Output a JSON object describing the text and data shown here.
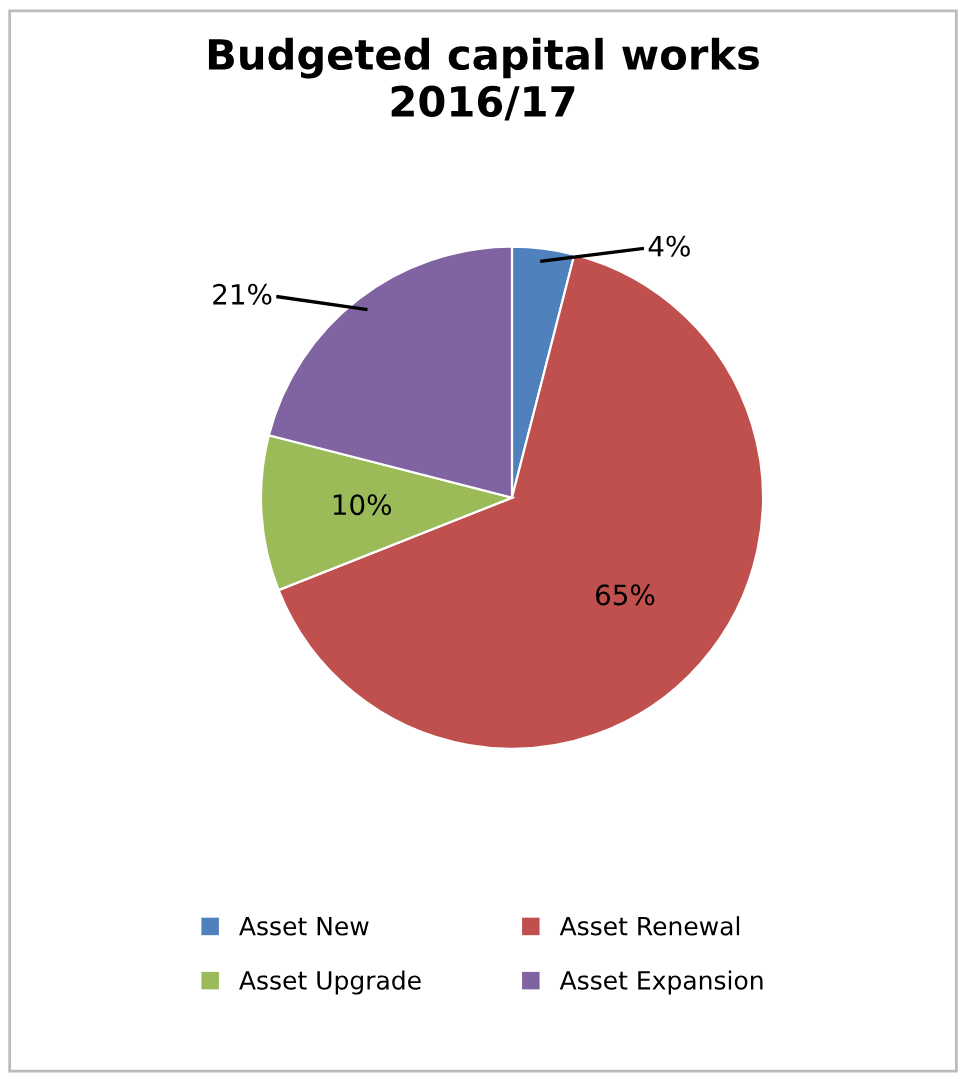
{
  "chart_data": {
    "type": "pie",
    "title": "Budgeted capital works\n2016/17",
    "categories": [
      "Asset New",
      "Asset Renewal",
      "Asset Upgrade",
      "Asset Expansion"
    ],
    "values": [
      4,
      65,
      10,
      21
    ],
    "colors": [
      "#4f81bd",
      "#c0504d",
      "#9bbb59",
      "#8064a2"
    ],
    "value_labels": [
      "4%",
      "65%",
      "10%",
      "21%"
    ],
    "legend": "bottom"
  }
}
